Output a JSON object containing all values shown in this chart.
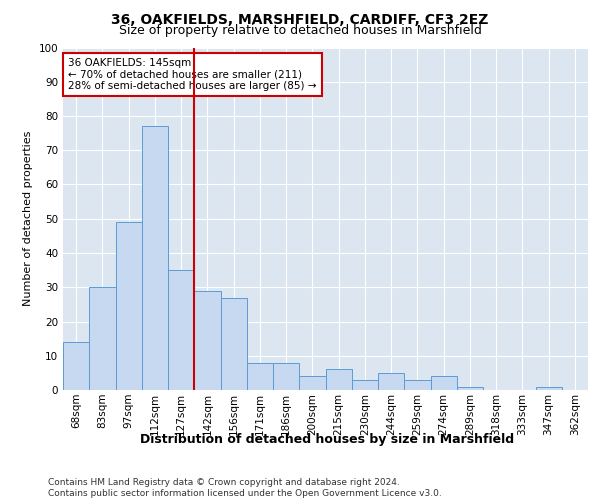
{
  "title1": "36, OAKFIELDS, MARSHFIELD, CARDIFF, CF3 2EZ",
  "title2": "Size of property relative to detached houses in Marshfield",
  "xlabel": "Distribution of detached houses by size in Marshfield",
  "ylabel": "Number of detached properties",
  "categories": [
    "68sqm",
    "83sqm",
    "97sqm",
    "112sqm",
    "127sqm",
    "142sqm",
    "156sqm",
    "171sqm",
    "186sqm",
    "200sqm",
    "215sqm",
    "230sqm",
    "244sqm",
    "259sqm",
    "274sqm",
    "289sqm",
    "318sqm",
    "333sqm",
    "347sqm",
    "362sqm"
  ],
  "values": [
    14,
    30,
    49,
    77,
    35,
    29,
    27,
    8,
    8,
    4,
    6,
    3,
    5,
    3,
    4,
    1,
    0,
    0,
    1,
    0
  ],
  "bar_color": "#c6d9f0",
  "bar_edge_color": "#5b9bd5",
  "vline_x_idx": 5,
  "vline_color": "#cc0000",
  "annotation_text": "36 OAKFIELDS: 145sqm\n← 70% of detached houses are smaller (211)\n28% of semi-detached houses are larger (85) →",
  "annotation_box_color": "#ffffff",
  "annotation_box_edge": "#cc0000",
  "background_color": "#dce6f1",
  "footer": "Contains HM Land Registry data © Crown copyright and database right 2024.\nContains public sector information licensed under the Open Government Licence v3.0.",
  "ylim": [
    0,
    100
  ],
  "title1_fontsize": 10,
  "title2_fontsize": 9,
  "xlabel_fontsize": 9,
  "ylabel_fontsize": 8,
  "tick_fontsize": 7.5,
  "footer_fontsize": 6.5
}
